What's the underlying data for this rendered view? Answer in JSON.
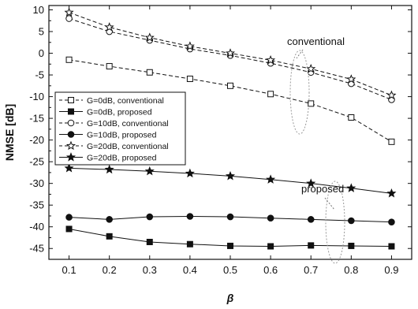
{
  "chart_data": {
    "type": "line",
    "xlabel": "β",
    "ylabel": "NMSE [dB]",
    "x": [
      0.1,
      0.2,
      0.3,
      0.4,
      0.5,
      0.6,
      0.7,
      0.8,
      0.9
    ],
    "xlim": [
      0.05,
      0.95
    ],
    "ylim": [
      -47.5,
      11
    ],
    "xticks": [
      0.1,
      0.2,
      0.3,
      0.4,
      0.5,
      0.6,
      0.7,
      0.8,
      0.9
    ],
    "yticks": [
      10,
      5,
      0,
      -5,
      -10,
      -15,
      -20,
      -25,
      -30,
      -35,
      -40,
      -45
    ],
    "grid": false,
    "legend_position": "middle-left",
    "series": [
      {
        "name": "G=0dB,   conventional",
        "marker": "square-open",
        "line": "dashed",
        "values": [
          -1.5,
          -3,
          -4.4,
          -5.9,
          -7.5,
          -9.4,
          -11.6,
          -14.8,
          -20.4
        ]
      },
      {
        "name": "G=0dB,   proposed",
        "marker": "square-filled",
        "line": "solid",
        "values": [
          -40.5,
          -42.2,
          -43.5,
          -44.0,
          -44.4,
          -44.5,
          -44.3,
          -44.4,
          -44.5
        ]
      },
      {
        "name": "G=10dB, conventional",
        "marker": "circle-open",
        "line": "dashed",
        "values": [
          8.0,
          5.0,
          3.0,
          1.0,
          -0.5,
          -2.3,
          -4.4,
          -7.0,
          -10.7
        ]
      },
      {
        "name": "G=10dB, proposed",
        "marker": "circle-filled",
        "line": "solid",
        "values": [
          -37.8,
          -38.3,
          -37.7,
          -37.6,
          -37.7,
          -38.0,
          -38.3,
          -38.6,
          -38.9
        ]
      },
      {
        "name": "G=20dB, conventional",
        "marker": "star-open",
        "line": "dashed",
        "values": [
          9.4,
          6.0,
          3.6,
          1.6,
          0.0,
          -1.6,
          -3.6,
          -6.0,
          -9.7
        ]
      },
      {
        "name": "G=20dB, proposed",
        "marker": "star-filled",
        "line": "solid",
        "values": [
          -26.5,
          -26.8,
          -27.2,
          -27.7,
          -28.3,
          -29.1,
          -30.0,
          -31.1,
          -32.3
        ]
      }
    ],
    "annotations": [
      {
        "text": "conventional"
      },
      {
        "text": "proposed"
      }
    ]
  }
}
